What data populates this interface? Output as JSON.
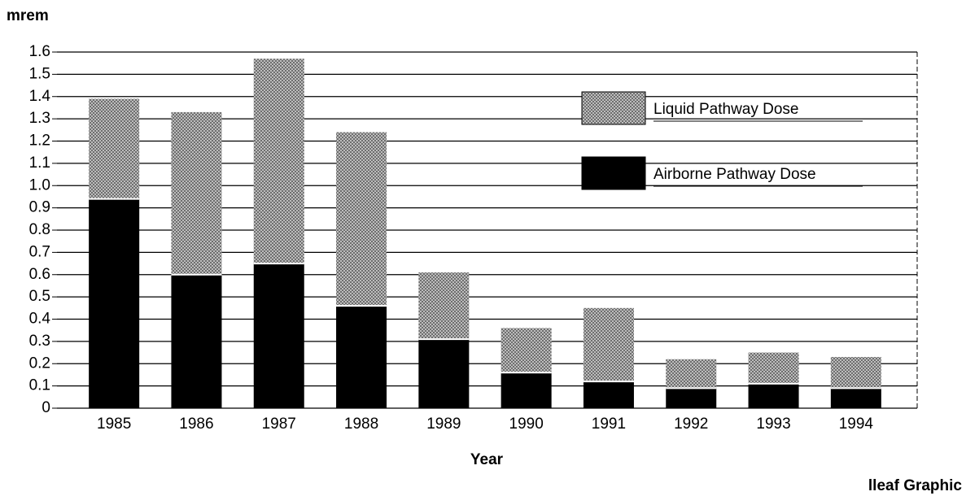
{
  "chart_data": {
    "type": "stacked_bar",
    "y_label": "mrem",
    "x_label": "Year",
    "annotation": "lleaf Graphic",
    "categories": [
      "1985",
      "1986",
      "1987",
      "1988",
      "1989",
      "1990",
      "1991",
      "1992",
      "1993",
      "1994"
    ],
    "series": [
      {
        "name": "Airborne Pathway Dose",
        "color": "#000000",
        "values": [
          0.94,
          0.6,
          0.65,
          0.46,
          0.31,
          0.16,
          0.12,
          0.09,
          0.11,
          0.09
        ]
      },
      {
        "name": "Liquid Pathway Dose",
        "color": "#9a9a9a",
        "values": [
          0.45,
          0.73,
          0.92,
          0.78,
          0.3,
          0.2,
          0.33,
          0.13,
          0.14,
          0.14
        ]
      }
    ],
    "ylim": [
      0,
      1.6
    ],
    "yticks": [
      0,
      0.1,
      0.2,
      0.3,
      0.4,
      0.5,
      0.6,
      0.7,
      0.8,
      0.9,
      {
        "value": 1,
        "label": "1.0"
      },
      1.1,
      1.2,
      1.3,
      1.4,
      1.5,
      1.6
    ],
    "grid": true
  }
}
